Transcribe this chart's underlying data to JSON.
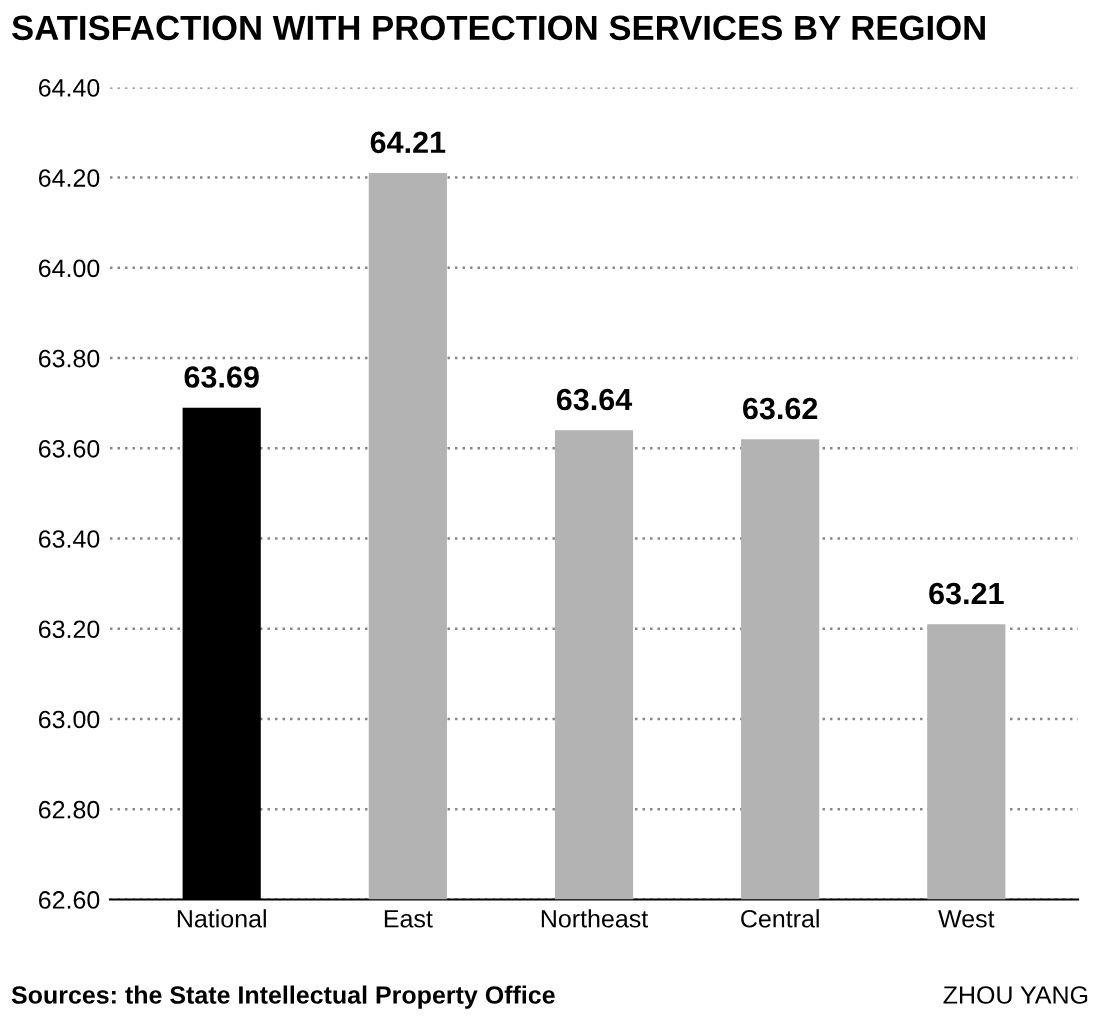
{
  "chart_data": {
    "type": "bar",
    "title": "SATISFACTION WITH PROTECTION SERVICES BY REGION",
    "categories": [
      "National",
      "East",
      "Northeast",
      "Central",
      "West"
    ],
    "values": [
      63.69,
      64.21,
      63.64,
      63.62,
      63.21
    ],
    "colors": [
      "#000000",
      "#b3b3b3",
      "#b3b3b3",
      "#b3b3b3",
      "#b3b3b3"
    ],
    "ylim": [
      62.6,
      64.4
    ],
    "yticks": [
      {
        "value": 62.6,
        "label": "62.60"
      },
      {
        "value": 62.8,
        "label": "62.80"
      },
      {
        "value": 63.0,
        "label": "63.00"
      },
      {
        "value": 63.2,
        "label": "63.20"
      },
      {
        "value": 63.4,
        "label": "63.40"
      },
      {
        "value": 63.6,
        "label": "63.60"
      },
      {
        "value": 63.8,
        "label": "63.80"
      },
      {
        "value": 64.0,
        "label": "64.00"
      },
      {
        "value": 64.2,
        "label": "64.20"
      },
      {
        "value": 64.4,
        "label": "64.40"
      }
    ],
    "grid": "y",
    "data_labels": true,
    "annotations": [
      "Sources: the State Intellectual Property Office",
      "ZHOU YANG"
    ]
  }
}
